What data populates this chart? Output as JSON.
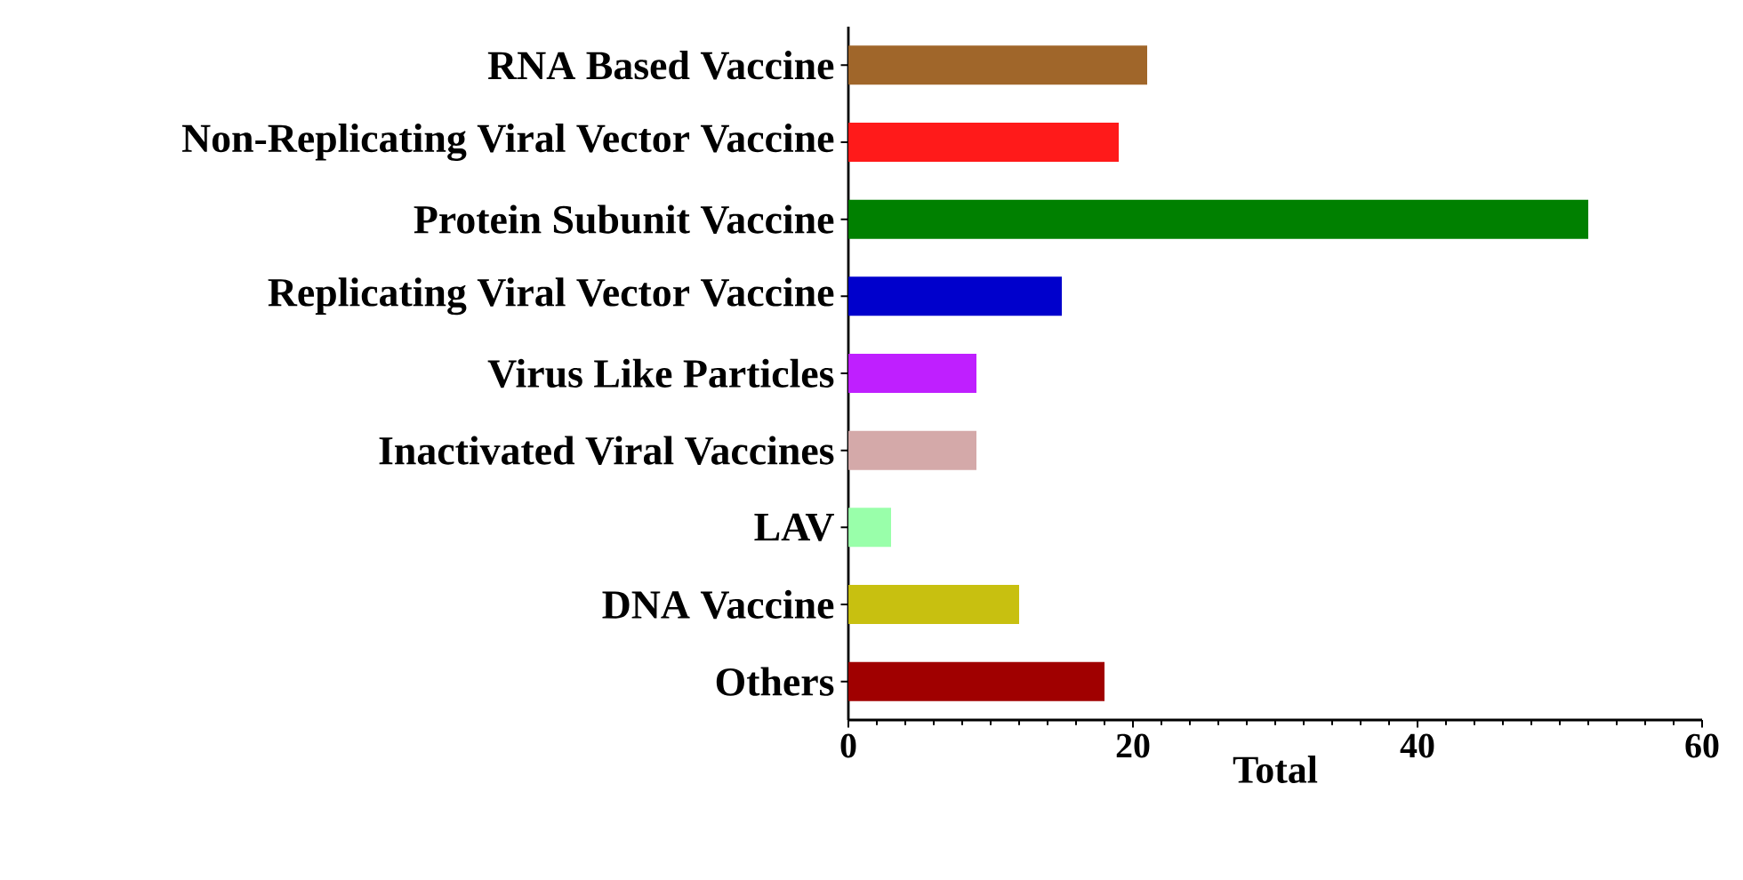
{
  "chart_data": {
    "type": "bar",
    "orientation": "horizontal",
    "xlabel": "Total",
    "categories": [
      "RNA Based Vaccine",
      "Non-Replicating Viral Vector Vaccine",
      "Protein Subunit Vaccine",
      "Replicating Viral Vector Vaccine",
      "Virus Like Particles",
      "Inactivated Viral Vaccines",
      "LAV",
      "DNA Vaccine",
      "Others"
    ],
    "values": [
      21,
      19,
      52,
      15,
      9,
      9,
      3,
      12,
      18
    ],
    "colors": [
      "#a0662a",
      "#ff1a1a",
      "#008000",
      "#0000cc",
      "#bf1fff",
      "#d4a9a9",
      "#99ffaa",
      "#c8c010",
      "#a00000"
    ],
    "xlim": [
      0,
      60
    ],
    "xticks": [
      0,
      20,
      40,
      60
    ],
    "grid": false
  }
}
